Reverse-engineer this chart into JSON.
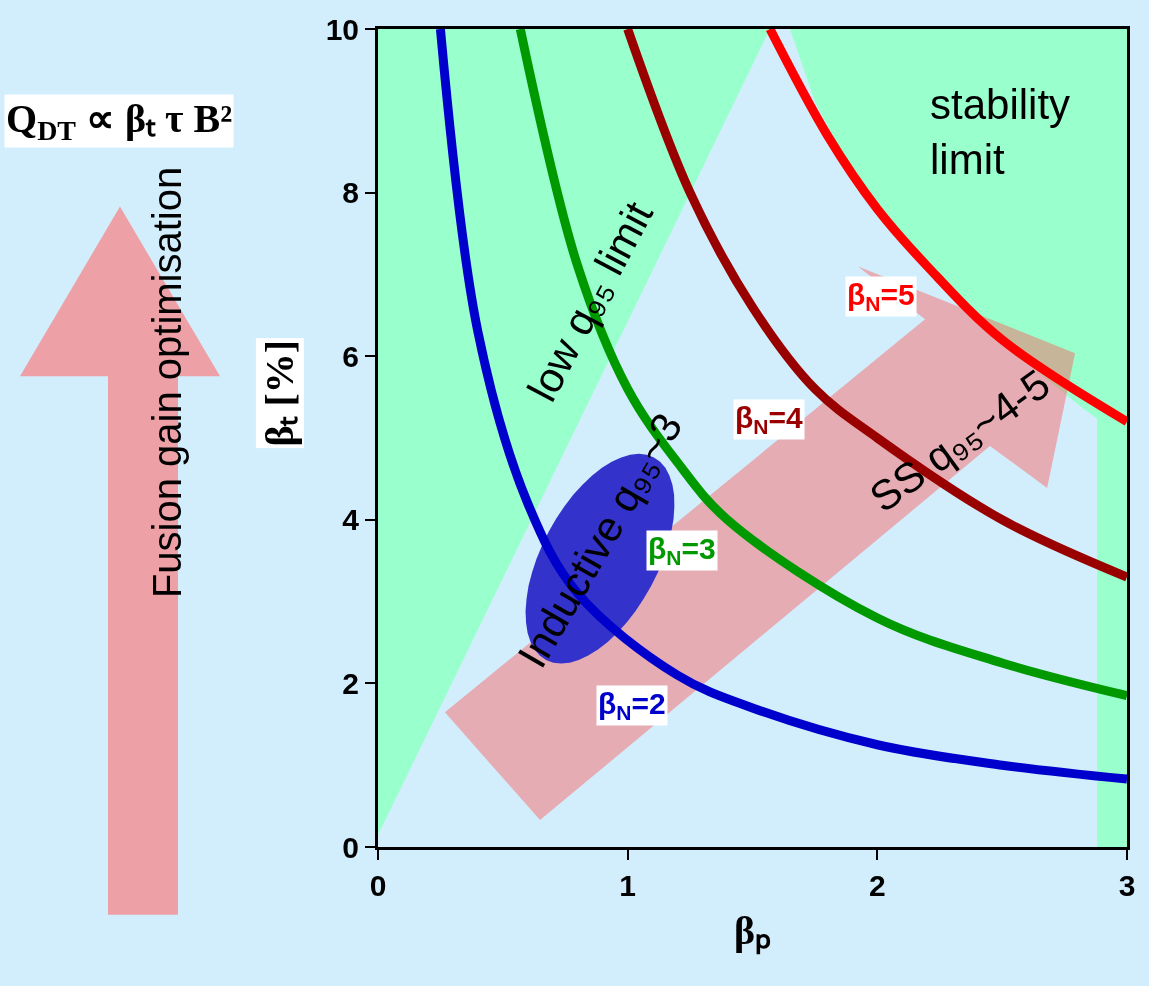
{
  "chart_data": {
    "type": "line",
    "title": "Q$_{DT}$ ∝ βₜ τ B²",
    "xlabel": "βₚ",
    "ylabel": "βₜ [%]",
    "xlim": [
      0,
      3
    ],
    "xticks": [
      0,
      1,
      2,
      3
    ],
    "ylim": [
      0,
      10
    ],
    "yticks": [
      0,
      2,
      4,
      6,
      8,
      10
    ],
    "grid": false,
    "legend": false,
    "series": [
      {
        "name": "β$_{N}$=2",
        "color": "#0000cc",
        "x": [
          0.25,
          0.4,
          0.6,
          0.8,
          1.2,
          1.5,
          2.0,
          2.5,
          3.0
        ],
        "values": [
          10,
          6.3,
          4.2,
          3.1,
          2.1,
          1.7,
          1.25,
          1.0,
          0.83
        ]
      },
      {
        "name": "β$_{N}$=3",
        "color": "#009900",
        "x": [
          0.57,
          0.8,
          1.0,
          1.2,
          1.4,
          2.0,
          2.5,
          3.0
        ],
        "values": [
          10,
          7.1,
          5.6,
          4.7,
          4.0,
          2.8,
          2.25,
          1.85
        ]
      },
      {
        "name": "β$_{N}$=4",
        "color": "#990000",
        "x": [
          1.0,
          1.25,
          1.5,
          1.75,
          2.0,
          2.5,
          3.0
        ],
        "values": [
          10,
          8.0,
          6.6,
          5.6,
          5.0,
          4.0,
          3.3
        ]
      },
      {
        "name": "β$_{N}$=5",
        "color": "#ff0000",
        "x": [
          1.57,
          1.8,
          2.0,
          2.2,
          2.5,
          3.0
        ],
        "values": [
          10,
          8.7,
          7.8,
          7.1,
          6.2,
          5.2
        ]
      }
    ],
    "bands": [
      {
        "axis": "x",
        "from": 2.88,
        "to": 3,
        "color": "#99ffcc"
      }
    ],
    "annotations": [
      "low q₉₅ limit",
      "stability limit",
      "Inductive q₉₅~3",
      "SS q₉₅~4-5",
      "Fusion gain optimisation"
    ]
  }
}
